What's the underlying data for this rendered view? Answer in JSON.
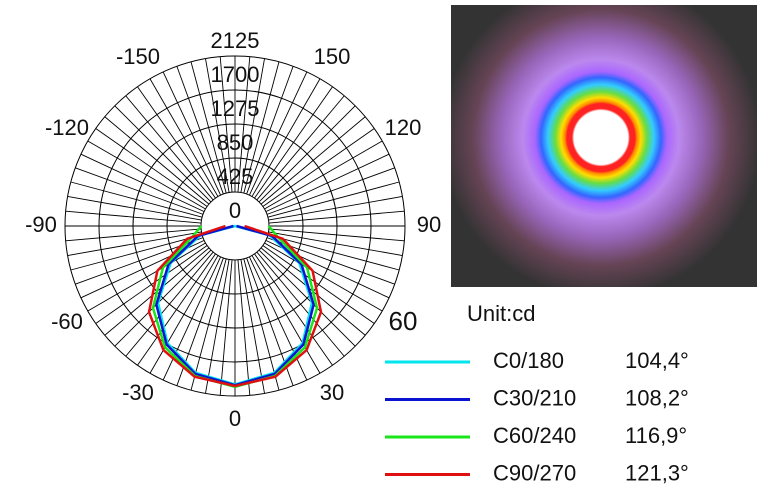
{
  "chart_data": {
    "type": "polar",
    "angles": [
      -90,
      -75,
      -60,
      -45,
      -30,
      -15,
      0,
      15,
      30,
      45,
      60,
      75,
      90
    ],
    "rlim": [
      0,
      2125
    ],
    "rticks": [
      0,
      425,
      850,
      1275,
      1700,
      2125
    ],
    "angle_ticks": [
      0,
      30,
      60,
      90,
      120,
      150,
      -150,
      -120,
      -90,
      -60,
      -30
    ],
    "unit": "Unit:cd",
    "series": [
      {
        "name": "C0/180",
        "beam_angle": "104,4°",
        "color": "#00e5ee",
        "values": [
          0,
          450,
          930,
          1360,
          1690,
          1900,
          1980,
          1900,
          1690,
          1360,
          930,
          450,
          0
        ]
      },
      {
        "name": "C30/210",
        "beam_angle": "108,2°",
        "color": "#0a14d0",
        "values": [
          20,
          480,
          960,
          1390,
          1710,
          1915,
          1990,
          1915,
          1710,
          1390,
          960,
          480,
          20
        ]
      },
      {
        "name": "C60/240",
        "beam_angle": "116,9°",
        "color": "#19e619",
        "values": [
          420,
          560,
          1040,
          1450,
          1750,
          1940,
          2010,
          1940,
          1750,
          1450,
          1040,
          560,
          420
        ]
      },
      {
        "name": "C90/270",
        "beam_angle": "121,3°",
        "color": "#e01010",
        "values": [
          120,
          620,
          1120,
          1520,
          1790,
          1950,
          2000,
          1950,
          1790,
          1520,
          1120,
          620,
          120
        ]
      }
    ]
  }
}
